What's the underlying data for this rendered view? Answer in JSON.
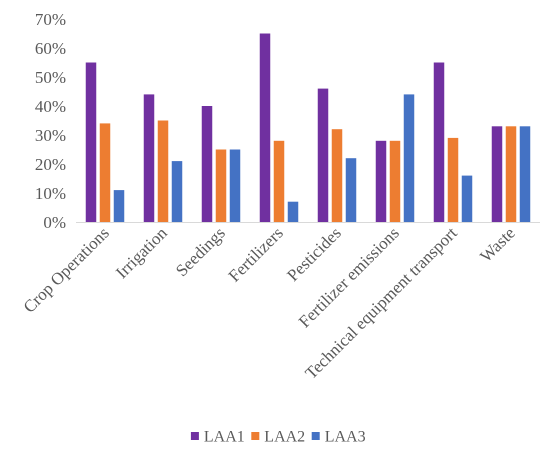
{
  "chart_data": {
    "type": "bar",
    "title": "",
    "xlabel": "",
    "ylabel": "",
    "ylim": [
      0,
      70
    ],
    "yticks": [
      0,
      10,
      20,
      30,
      40,
      50,
      60,
      70
    ],
    "ytick_suffix": "%",
    "grid": false,
    "legend": "bottom",
    "categories": [
      "Crop Operations",
      "Irrigation",
      "Seedings",
      "Fertilizers",
      "Pesticides",
      "Fertilizer emissions",
      "Technical equipment transport",
      "Waste"
    ],
    "series": [
      {
        "name": "LAA1",
        "color": "#7030a0",
        "values": [
          55,
          44,
          40,
          65,
          46,
          28,
          55,
          33
        ]
      },
      {
        "name": "LAA2",
        "color": "#ed7d31",
        "values": [
          34,
          35,
          25,
          28,
          32,
          28,
          29,
          33
        ]
      },
      {
        "name": "LAA3",
        "color": "#4472c4",
        "values": [
          11,
          21,
          25,
          7,
          22,
          44,
          16,
          33
        ]
      }
    ]
  }
}
